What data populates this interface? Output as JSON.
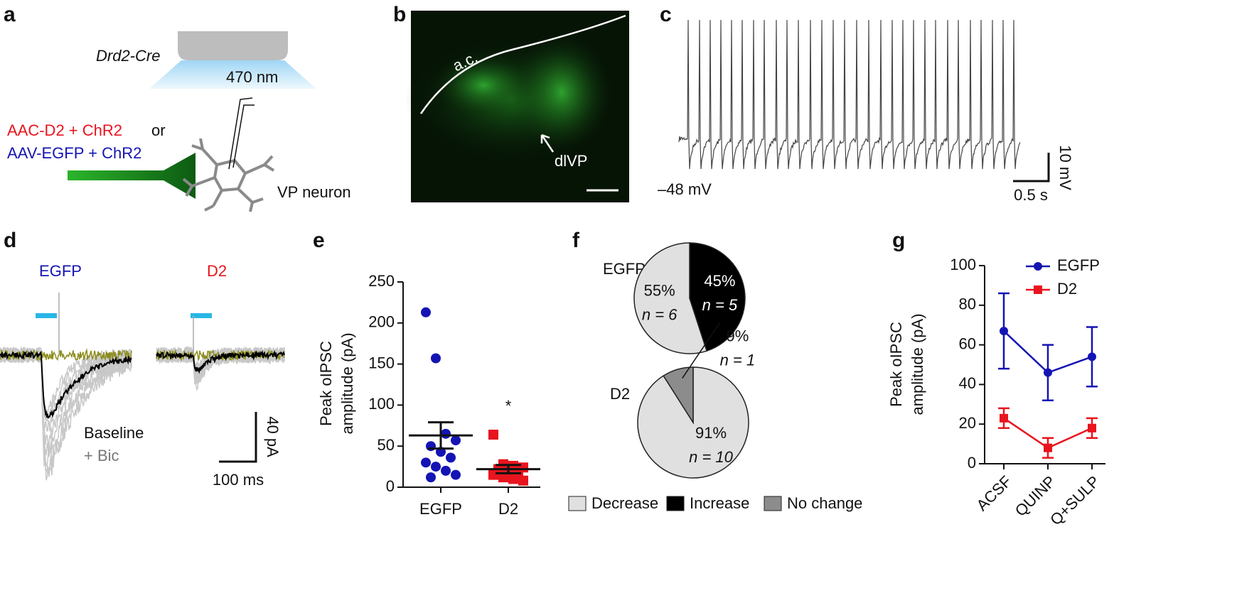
{
  "panel_labels": [
    "a",
    "b",
    "c",
    "d",
    "e",
    "f",
    "g"
  ],
  "panel_a": {
    "strain": "Drd2-Cre",
    "wavelength": "470 nm",
    "virus_d2": "AAC-D2 + ChR2",
    "conjunction": "or",
    "virus_egfp": "AAV-EGFP + ChR2",
    "neuron": "VP neuron"
  },
  "panel_b": {
    "commissure": "a.c.",
    "region": "dlVP"
  },
  "panel_c": {
    "potential": "–48 mV",
    "scale_y": "10 mV",
    "scale_x": "0.5 s"
  },
  "panel_d": {
    "egfp": "EGFP",
    "d2": "D2",
    "baseline": "Baseline",
    "bic": "+ Bic",
    "scale_y": "40 pA",
    "scale_x": "100 ms"
  },
  "panel_f": {
    "group_egfp": "EGFP",
    "group_d2": "D2",
    "legend": [
      {
        "name": "Decrease",
        "color": "#e0e0e0"
      },
      {
        "name": "Increase",
        "color": "#000000"
      },
      {
        "name": "No change",
        "color": "#8c8c8c"
      }
    ]
  },
  "chart_data": [
    {
      "type": "dot",
      "ylabel": [
        "Peak oIPSC",
        "amplitude (pA)"
      ],
      "categories": [
        "EGFP",
        "D2"
      ],
      "colors": [
        "#1414b4",
        "#e8141e"
      ],
      "markers": [
        "circle",
        "square"
      ],
      "points": [
        [
          213,
          157,
          65,
          57,
          50,
          43,
          36,
          30,
          25,
          20,
          15,
          12
        ],
        [
          64,
          28,
          26,
          24,
          22,
          20,
          18,
          15,
          12,
          10,
          8
        ]
      ],
      "means": [
        63,
        22
      ],
      "errors": [
        16,
        5
      ],
      "annotation": "*",
      "ylim": [
        0,
        250
      ],
      "yticks": [
        0,
        50,
        100,
        150,
        200,
        250
      ]
    },
    {
      "type": "pie",
      "values": [
        45,
        55
      ],
      "value_labels": [
        "45%",
        "55%"
      ],
      "n_labels": [
        "n = 5",
        "n = 6"
      ],
      "colors": [
        "#000000",
        "#e0e0e0"
      ]
    },
    {
      "type": "pie",
      "values": [
        91,
        9
      ],
      "value_labels": [
        "91%",
        "9%"
      ],
      "n_labels": [
        "n = 10",
        "n = 1"
      ],
      "colors": [
        "#e0e0e0",
        "#8c8c8c"
      ]
    },
    {
      "type": "line",
      "ylabel": [
        "Peak oIPSC",
        "amplitude (pA)"
      ],
      "categories": [
        "ACSF",
        "QUINP",
        "Q+SULP"
      ],
      "series": [
        {
          "name": "EGFP",
          "color": "#1414b4",
          "marker": "circle",
          "values": [
            67,
            46,
            54
          ],
          "errors": [
            19,
            14,
            15
          ]
        },
        {
          "name": "D2",
          "color": "#e8141e",
          "marker": "square",
          "values": [
            23,
            8,
            18
          ],
          "errors": [
            5,
            5,
            5
          ]
        }
      ],
      "ylim": [
        0,
        100
      ],
      "yticks": [
        0,
        20,
        40,
        60,
        80,
        100
      ]
    }
  ]
}
